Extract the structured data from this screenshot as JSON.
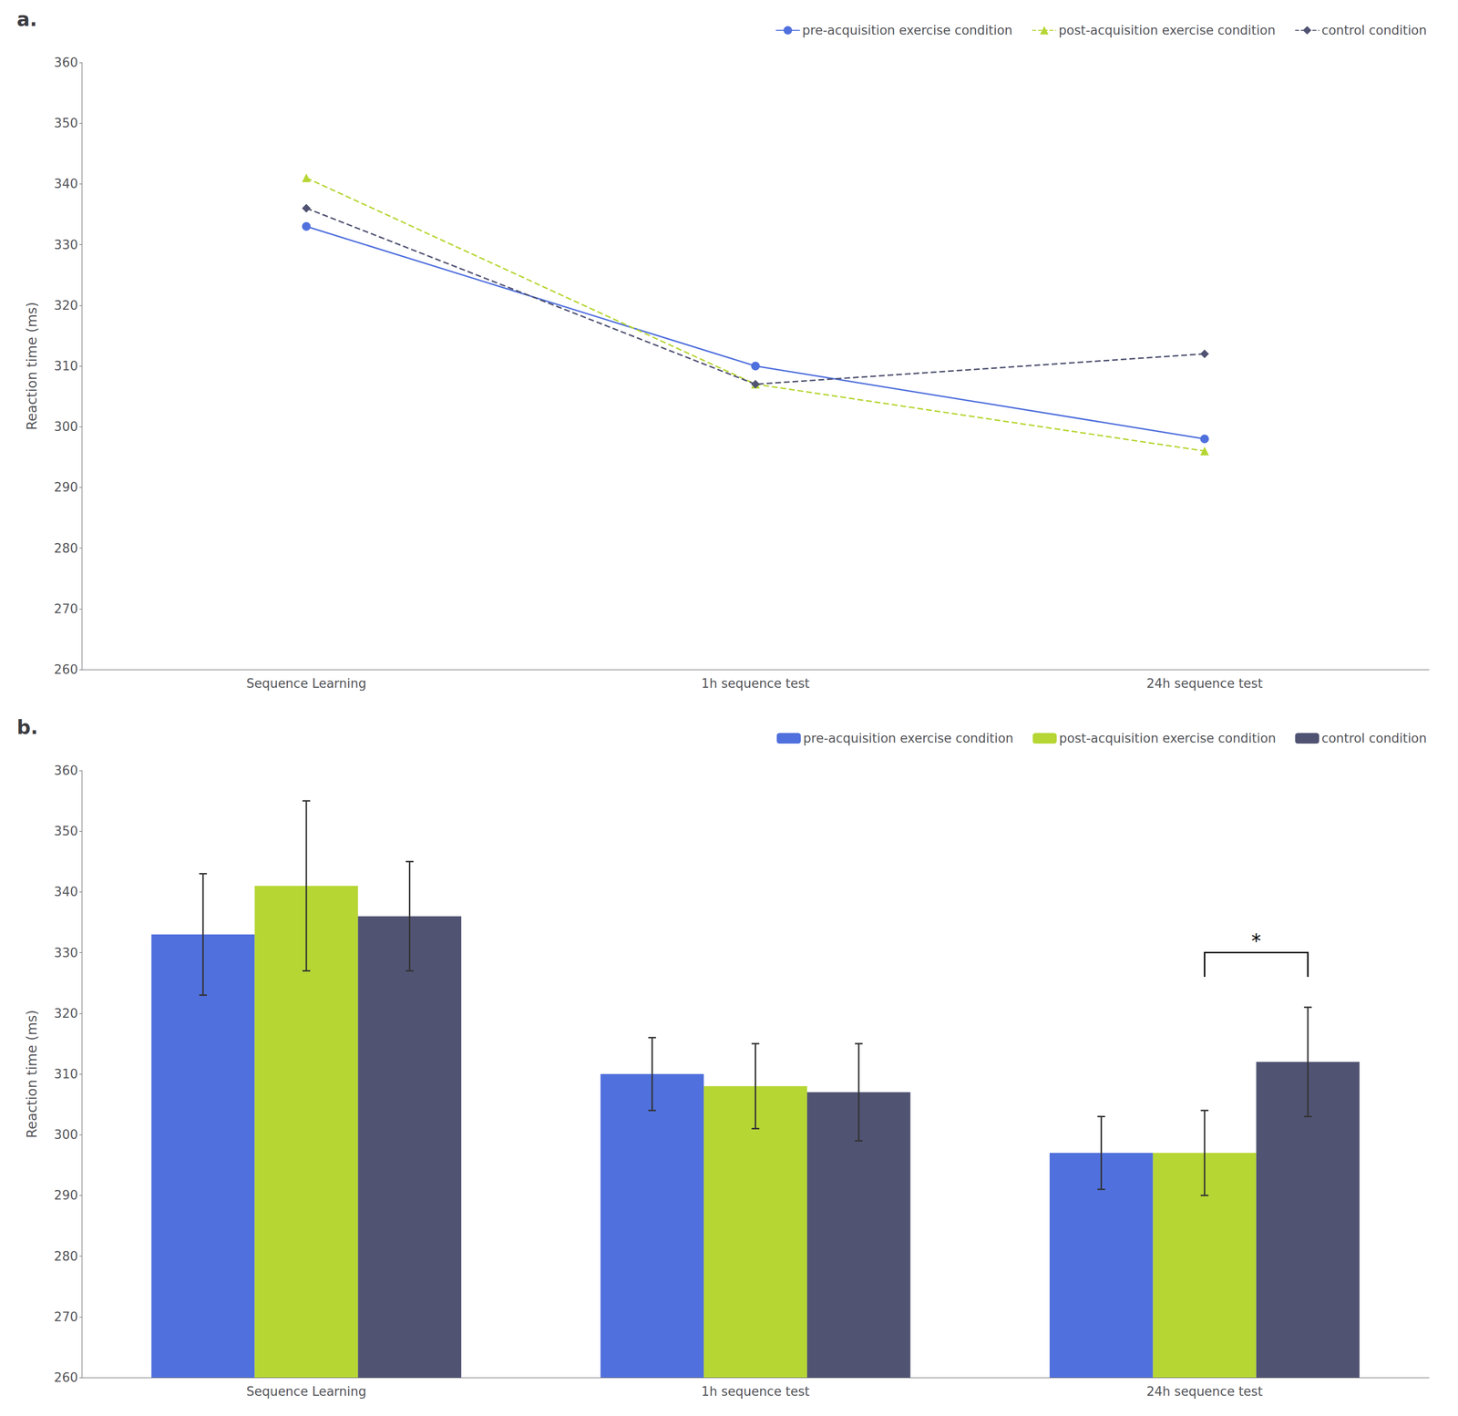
{
  "chart_data": [
    {
      "type": "line",
      "title": "a.",
      "categories": [
        "Sequence Learning",
        "1h sequence test",
        "24h sequence test"
      ],
      "series": [
        {
          "name": "pre-acquisition exercise condition",
          "values": [
            333,
            310,
            298
          ],
          "marker": "circle",
          "line_style": "solid"
        },
        {
          "name": "post-acquisition exercise condition",
          "values": [
            341,
            307,
            296
          ],
          "marker": "triangle",
          "line_style": "dashed"
        },
        {
          "name": "control condition",
          "values": [
            336,
            307,
            312
          ],
          "marker": "diamond",
          "line_style": "dashed"
        }
      ],
      "ylabel": "Reaction time (ms)",
      "ylim": [
        260,
        360
      ],
      "yticks": [
        260,
        270,
        280,
        290,
        300,
        310,
        320,
        330,
        340,
        350,
        360
      ],
      "grid": false,
      "legend": "upper right"
    },
    {
      "type": "bar",
      "title": "b.",
      "categories": [
        "Sequence Learning",
        "1h sequence test",
        "24h sequence test"
      ],
      "series": [
        {
          "name": "pre-acquisition exercise condition",
          "values": [
            333,
            310,
            297
          ],
          "errors": [
            10,
            6,
            6
          ]
        },
        {
          "name": "post-acquisition exercise condition",
          "values": [
            341,
            308,
            297
          ],
          "errors": [
            14,
            7,
            7
          ]
        },
        {
          "name": "control condition",
          "values": [
            336,
            307,
            312
          ],
          "errors": [
            9,
            8,
            9
          ]
        }
      ],
      "ylabel": "Reaction time (ms)",
      "ylim": [
        260,
        360
      ],
      "yticks": [
        260,
        270,
        280,
        290,
        300,
        310,
        320,
        330,
        340,
        350,
        360
      ],
      "grid": false,
      "legend": "upper right",
      "annotations": [
        {
          "text": "*",
          "x": "24h sequence test",
          "series": [
            "post-acquisition exercise condition",
            "control condition"
          ],
          "y": 330
        }
      ]
    }
  ]
}
